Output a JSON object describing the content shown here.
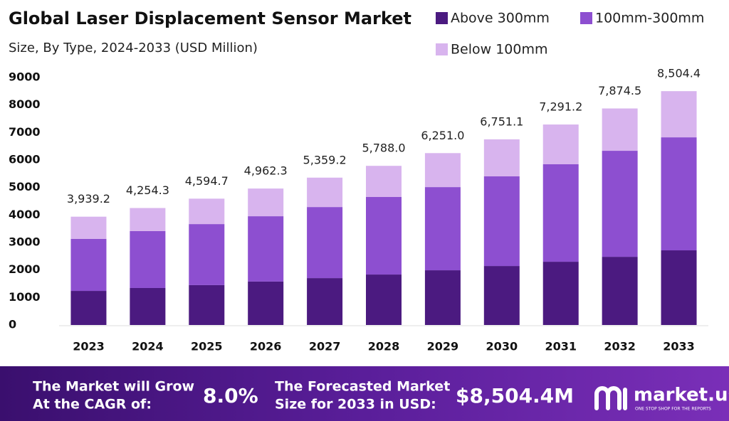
{
  "chart_data": {
    "type": "stacked-bar",
    "title": "Global Laser Displacement Sensor Market",
    "subtitle": "Size, By Type, 2024-2033 (USD Million)",
    "categories": [
      "2023",
      "2024",
      "2025",
      "2026",
      "2027",
      "2028",
      "2029",
      "2030",
      "2031",
      "2032",
      "2033"
    ],
    "series": [
      {
        "name": "Above 300mm",
        "color": "#4b1a80",
        "values": [
          1240,
          1345,
          1450,
          1580,
          1705,
          1835,
          1990,
          2145,
          2300,
          2480,
          2715
        ]
      },
      {
        "name": "100mm-300mm",
        "color": "#8d4fd0",
        "values": [
          1890,
          2070,
          2220,
          2375,
          2585,
          2820,
          3025,
          3260,
          3545,
          3855,
          4110
        ]
      },
      {
        "name": "Below 100mm",
        "color": "#d8b4ee",
        "values": [
          809.2,
          839.3,
          924.7,
          1007.3,
          1069.2,
          1133,
          1236,
          1346.1,
          1446.2,
          1539.5,
          1679.4
        ]
      }
    ],
    "totals": [
      3939.2,
      4254.3,
      4594.7,
      4962.3,
      5359.2,
      5788.0,
      6251.0,
      6751.1,
      7291.2,
      7874.5,
      8504.4
    ],
    "total_labels": [
      "3,939.2",
      "4,254.3",
      "4,594.7",
      "4,962.3",
      "5,359.2",
      "5,788.0",
      "6,251.0",
      "6,751.1",
      "7,291.2",
      "7,874.5",
      "8,504.4"
    ],
    "ylim": [
      0,
      9000
    ],
    "yticks": [
      0,
      1000,
      2000,
      3000,
      4000,
      5000,
      6000,
      7000,
      8000,
      9000
    ],
    "grid": false,
    "legend": "top-right"
  },
  "footer": {
    "cagr_text": [
      "The Market will Grow",
      "At the CAGR of:"
    ],
    "cagr_value": "8.0%",
    "forecast_text": [
      "The Forecasted Market",
      "Size for 2033 in USD:"
    ],
    "forecast_value": "$8,504.4M",
    "brand": "market.us",
    "tagline": "ONE STOP SHOP FOR THE REPORTS"
  }
}
